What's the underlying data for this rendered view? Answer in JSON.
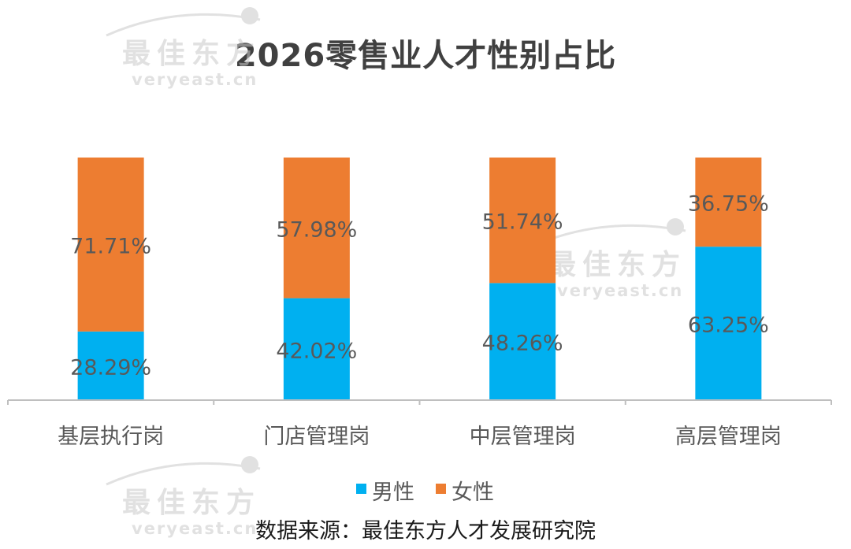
{
  "chart_data": {
    "type": "bar",
    "stacked": true,
    "title": "2026零售业人才性别占比",
    "categories": [
      "基层执行岗",
      "门店管理岗",
      "中层管理岗",
      "高层管理岗"
    ],
    "series": [
      {
        "name": "男性",
        "color": "#00B0F0",
        "values": [
          28.29,
          42.02,
          48.26,
          63.25
        ],
        "labels": [
          "28.29%",
          "42.02%",
          "48.26%",
          "63.25%"
        ]
      },
      {
        "name": "女性",
        "color": "#ED7D31",
        "values": [
          71.71,
          57.98,
          51.74,
          36.75
        ],
        "labels": [
          "71.71%",
          "57.98%",
          "51.74%",
          "36.75%"
        ]
      }
    ],
    "ylim": [
      0,
      100
    ],
    "grid": false,
    "legend_position": "bottom"
  },
  "source_text": "数据来源：最佳东方人才发展研究院",
  "watermark": {
    "brand": "最佳东方",
    "domain": "veryeast.cn",
    "color": "#c9c9c9"
  },
  "colors": {
    "axis": "#bfbfbf",
    "label": "#595959",
    "title": "#404040"
  }
}
